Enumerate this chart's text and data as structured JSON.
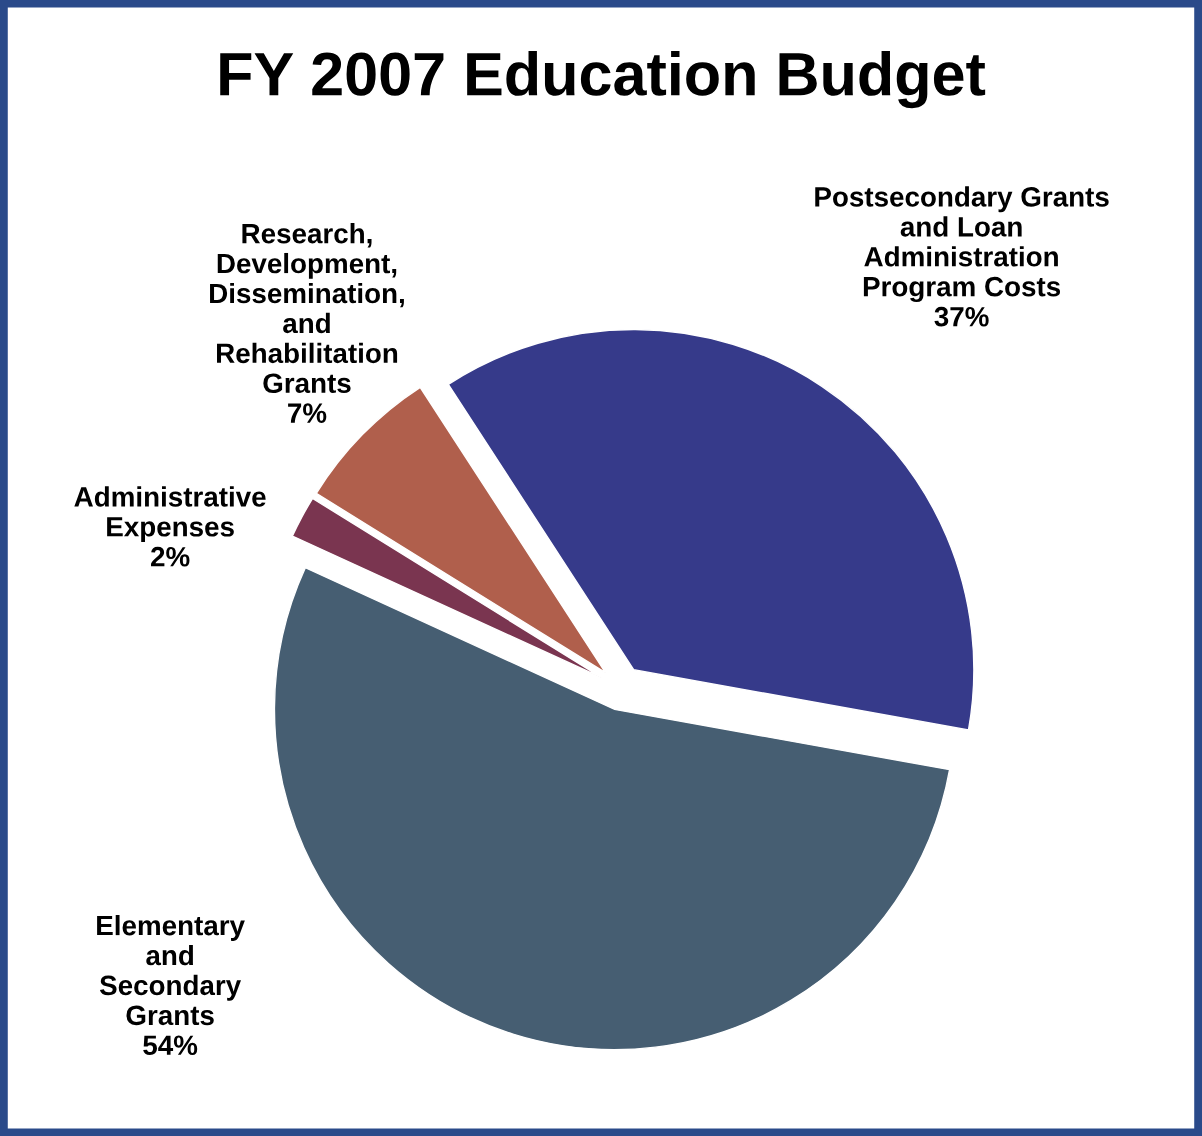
{
  "chart_data": {
    "type": "pie",
    "title": "FY 2007 Education Budget",
    "categories": [
      "Postsecondary Grants\nand Loan\nAdministration\nProgram Costs",
      "Elementary\nand\nSecondary\nGrants",
      "Administrative\nExpenses",
      "Research,\nDevelopment,\nDissemination,\nand\nRehabilitation\nGrants"
    ],
    "values": [
      37,
      54,
      2,
      7
    ],
    "value_labels": [
      "37%",
      "54%",
      "2%",
      "7%"
    ],
    "colors": [
      "#363a8a",
      "#465e72",
      "#7a3550",
      "#b05f4c"
    ]
  }
}
